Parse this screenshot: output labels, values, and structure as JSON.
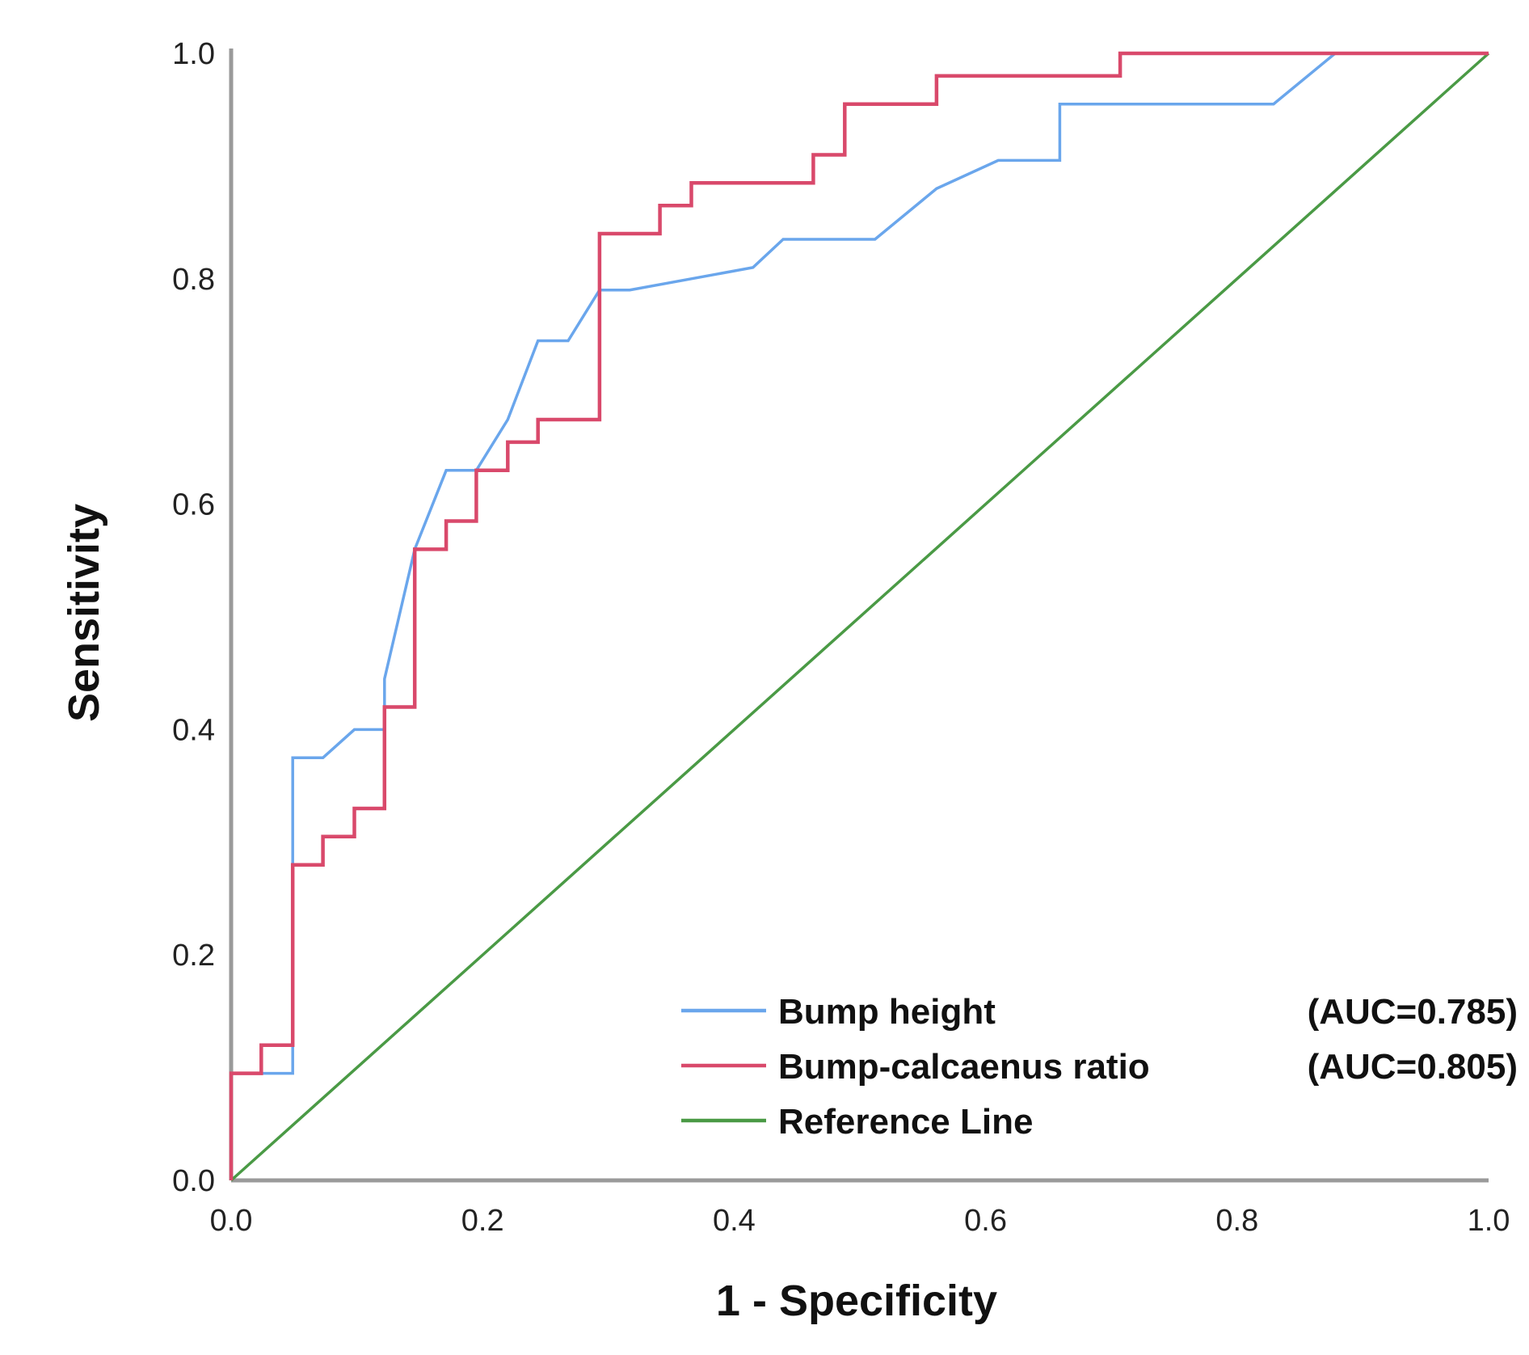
{
  "chart_data": {
    "type": "line",
    "title": "",
    "xlabel": "1 - Specificity",
    "ylabel": "Sensitivity",
    "xlim": [
      0,
      1
    ],
    "ylim": [
      0,
      1
    ],
    "grid": false,
    "legend_position": "bottom-right",
    "x_ticks": [
      "0.0",
      "0.2",
      "0.4",
      "0.6",
      "0.8",
      "1.0"
    ],
    "y_ticks": [
      "0.0",
      "0.2",
      "0.4",
      "0.6",
      "0.8",
      "1.0"
    ],
    "series": [
      {
        "name": "Bump height",
        "auc_label": "(AUC=0.785)",
        "color": "#6aa6ec",
        "x": [
          0.0,
          0.0,
          0.049,
          0.049,
          0.073,
          0.098,
          0.122,
          0.122,
          0.146,
          0.171,
          0.195,
          0.22,
          0.244,
          0.268,
          0.293,
          0.317,
          0.366,
          0.415,
          0.439,
          0.488,
          0.512,
          0.561,
          0.61,
          0.659,
          0.659,
          0.829,
          0.878,
          1.0
        ],
        "y": [
          0.0,
          0.095,
          0.095,
          0.375,
          0.375,
          0.4,
          0.4,
          0.445,
          0.56,
          0.63,
          0.63,
          0.675,
          0.745,
          0.745,
          0.79,
          0.79,
          0.8,
          0.81,
          0.835,
          0.835,
          0.835,
          0.88,
          0.905,
          0.905,
          0.955,
          0.955,
          1.0,
          1.0
        ]
      },
      {
        "name": "Bump-calcaenus ratio",
        "auc_label": "(AUC=0.805)",
        "color": "#d9496b",
        "x": [
          0.0,
          0.0,
          0.024,
          0.024,
          0.049,
          0.049,
          0.073,
          0.073,
          0.098,
          0.098,
          0.122,
          0.122,
          0.146,
          0.146,
          0.171,
          0.171,
          0.195,
          0.195,
          0.22,
          0.22,
          0.244,
          0.244,
          0.293,
          0.293,
          0.341,
          0.341,
          0.366,
          0.366,
          0.463,
          0.463,
          0.488,
          0.488,
          0.561,
          0.561,
          0.707,
          0.707,
          1.0
        ],
        "y": [
          0.0,
          0.095,
          0.095,
          0.12,
          0.12,
          0.28,
          0.28,
          0.305,
          0.305,
          0.33,
          0.33,
          0.42,
          0.42,
          0.56,
          0.56,
          0.585,
          0.585,
          0.63,
          0.63,
          0.655,
          0.655,
          0.675,
          0.675,
          0.84,
          0.84,
          0.865,
          0.865,
          0.885,
          0.885,
          0.91,
          0.91,
          0.955,
          0.955,
          0.98,
          0.98,
          1.0,
          1.0
        ]
      },
      {
        "name": "Reference Line",
        "auc_label": "",
        "color": "#4a9a45",
        "x": [
          0.0,
          1.0
        ],
        "y": [
          0.0,
          1.0
        ]
      }
    ]
  }
}
